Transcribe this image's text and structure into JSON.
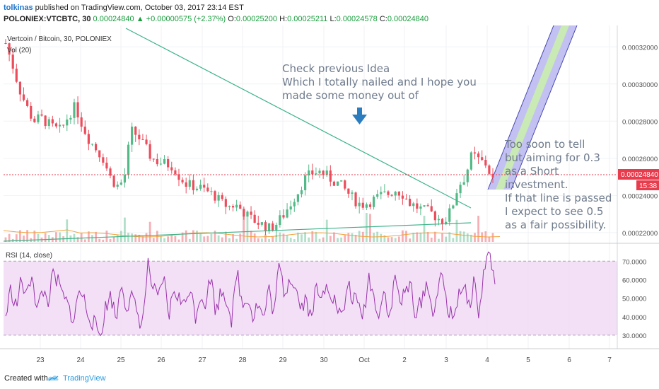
{
  "header": {
    "author": "tolkinas",
    "published": "published on TradingView.com, October 03, 2017 23:14 EST",
    "symbol": "POLONIEX:VTCBTC, 30",
    "last": "0.00024840",
    "change": "▲ +0.00000575 (+2.37%)",
    "o_label": "O:",
    "o": "0.00025200",
    "h_label": "H:",
    "h": "0.00025211",
    "l_label": "L:",
    "l": "0.00024578",
    "c_label": "C:",
    "c": "0.00024840"
  },
  "pane_title": "Vertcoin / Bitcoin, 30, POLONIEX",
  "vol_label": "Vol (20)",
  "rsi_label": "RSI (14, close)",
  "annotations": {
    "idea": [
      "Check previous Idea",
      "Which I totally nailed and I hope you",
      "made some money out of"
    ],
    "outlook": [
      "Too soon to tell",
      "but aiming for 0.3",
      "as a Short",
      "investment.",
      "If that line is passed",
      "I expect to see 0.5",
      "as a fair possibility."
    ]
  },
  "price_axis": [
    "0.00032000",
    "0.00030000",
    "0.00028000",
    "0.00026000",
    "0.00024000",
    "0.00022000"
  ],
  "price_badge": "0.00024840",
  "time_badge": "15:38",
  "rsi_axis": [
    "70.0000",
    "60.0000",
    "50.0000",
    "40.0000",
    "30.0000"
  ],
  "x_axis": [
    "23",
    "24",
    "25",
    "26",
    "27",
    "28",
    "29",
    "30",
    "Oct",
    "2",
    "3",
    "4",
    "5",
    "6",
    "7"
  ],
  "footer": {
    "created": "Created with",
    "brand": "TradingView"
  },
  "colors": {
    "up": "#53b987",
    "down": "#eb4d5c",
    "trend": "#3cb38a",
    "rsi": "#9933aa",
    "rsi_band": "#f0d8f5",
    "badge": "#e83b4c",
    "channel_outer": "#b9b6f0",
    "channel_inner": "#c9ecb0",
    "channel_edge": "#4a4ab0",
    "annotation": "#6f7b8c",
    "arrow": "#2b7dc0"
  },
  "chart_data": {
    "type": "candlestick",
    "symbol": "VTCBTC",
    "timeframe": "30",
    "y_range": [
      0.000215,
      0.00033
    ],
    "price_close": [
      0.000322,
      0.00031,
      0.000297,
      0.000288,
      0.00028,
      0.000282,
      0.000279,
      0.000276,
      0.000275,
      0.000283,
      0.000288,
      0.000278,
      0.00027,
      0.000265,
      0.00026,
      0.00025,
      0.000245,
      0.000248,
      0.000275,
      0.000272,
      0.000266,
      0.00026,
      0.000258,
      0.000257,
      0.000256,
      0.00025,
      0.000246,
      0.000245,
      0.000244,
      0.000242,
      0.00024,
      0.000236,
      0.000234,
      0.000235,
      0.000232,
      0.000228,
      0.000226,
      0.000224,
      0.000222,
      0.000225,
      0.00023,
      0.000236,
      0.000242,
      0.000249,
      0.000252,
      0.000253,
      0.000251,
      0.000248,
      0.000246,
      0.000242,
      0.000238,
      0.000235,
      0.000236,
      0.000238,
      0.00024,
      0.000241,
      0.000243,
      0.000241,
      0.000236,
      0.000234,
      0.000232,
      0.000231,
      0.000228,
      0.000226,
      0.000232,
      0.000245,
      0.00025,
      0.000262,
      0.000259,
      0.000257,
      0.0002484
    ],
    "rsi_close": [
      40,
      55,
      45,
      60,
      50,
      65,
      42,
      55,
      48,
      62,
      58,
      50,
      45,
      38,
      55,
      48,
      40,
      35,
      30,
      45,
      52,
      38,
      60,
      45,
      50,
      42,
      35,
      68,
      55,
      48,
      62,
      40,
      55,
      50,
      45,
      58,
      40,
      52,
      48,
      62,
      42,
      55,
      50,
      38,
      65,
      45,
      52,
      40,
      48,
      38,
      55,
      42,
      68,
      52,
      62,
      58,
      45,
      50,
      40,
      55,
      48,
      60,
      52,
      45,
      38,
      58,
      50,
      46,
      40,
      62,
      50,
      42,
      55,
      38,
      62,
      48,
      52,
      58,
      40,
      48,
      60,
      42,
      52,
      62,
      45,
      38,
      52,
      58,
      44,
      60,
      40,
      68,
      74,
      58
    ],
    "rsi_levels": [
      30,
      70
    ],
    "rsi_range": [
      25,
      77
    ]
  }
}
